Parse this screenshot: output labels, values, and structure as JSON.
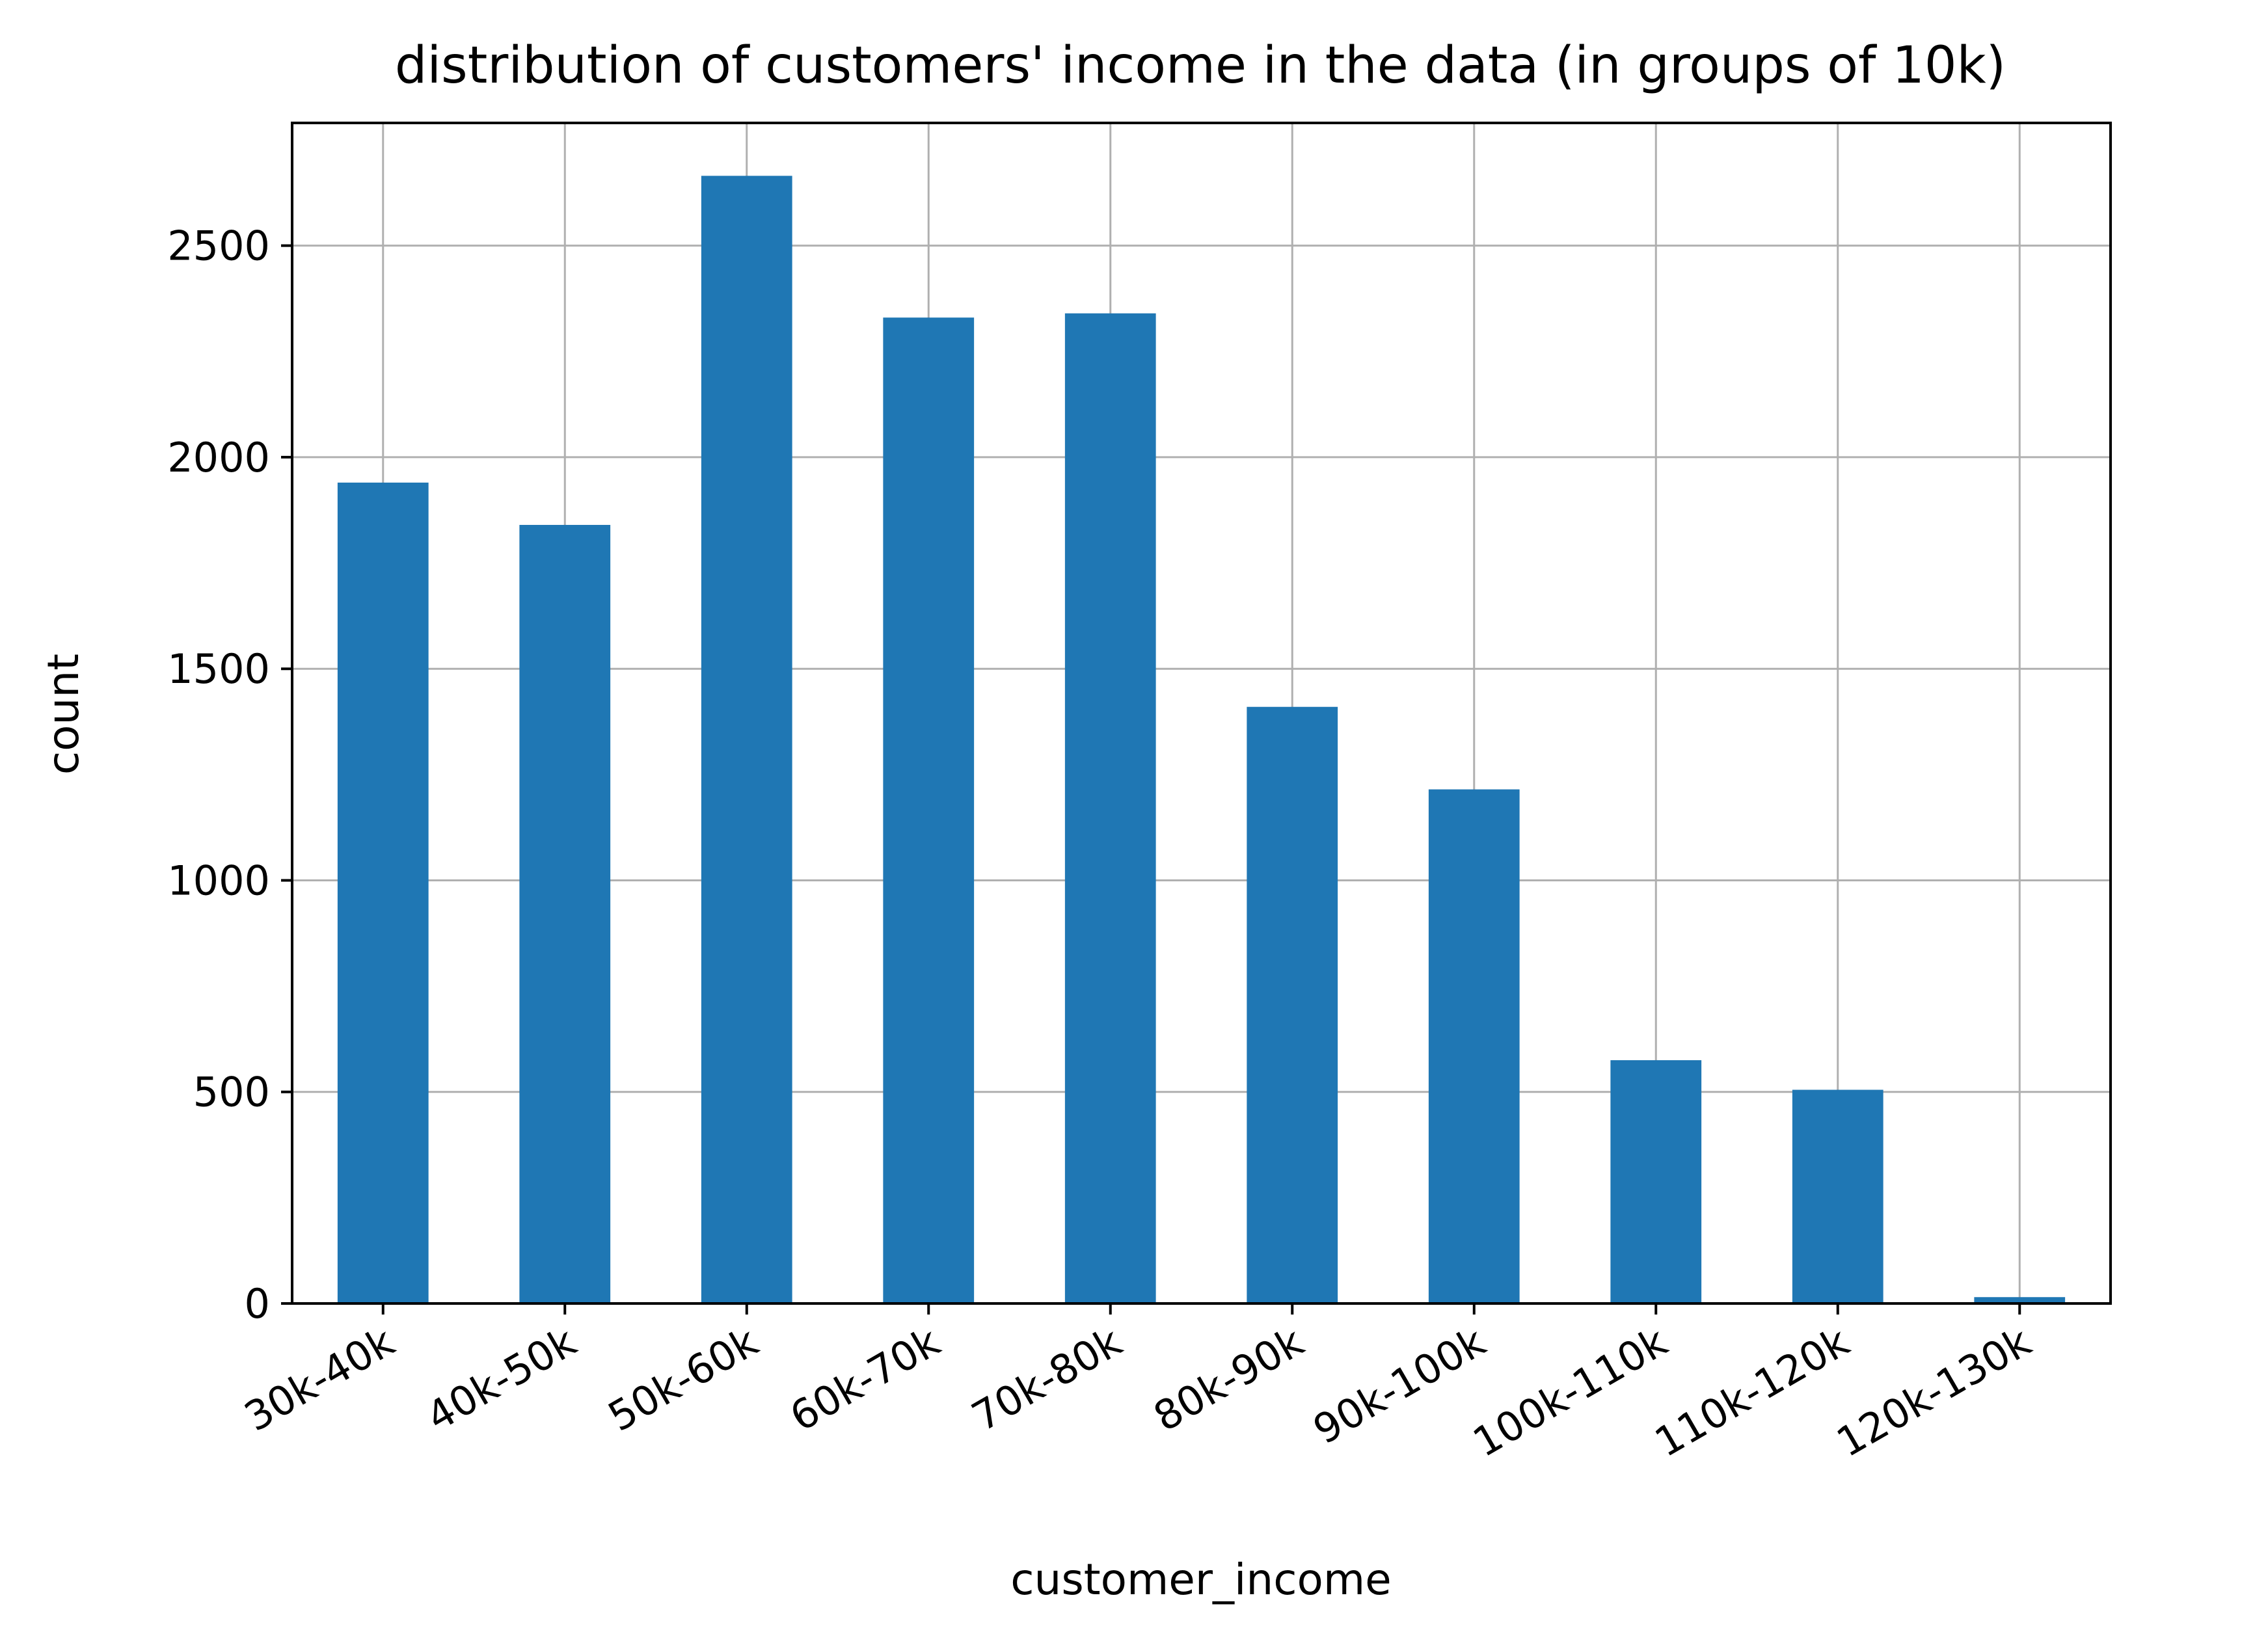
{
  "chart_data": {
    "type": "bar",
    "title": "distribution of customers' income in the data (in groups of 10k)",
    "xlabel": "customer_income",
    "ylabel": "count",
    "categories": [
      "30k-40k",
      "40k-50k",
      "50k-60k",
      "60k-70k",
      "70k-80k",
      "80k-90k",
      "90k-100k",
      "100k-110k",
      "110k-120k",
      "120k-130k"
    ],
    "values": [
      1940,
      1840,
      2665,
      2330,
      2340,
      1410,
      1215,
      575,
      505,
      15
    ],
    "ylim": [
      0,
      2790
    ],
    "yticks": [
      0,
      500,
      1000,
      1500,
      2000,
      2500
    ],
    "grid": true,
    "bar_color": "#1f77b4",
    "grid_color": "#b0b0b0"
  }
}
